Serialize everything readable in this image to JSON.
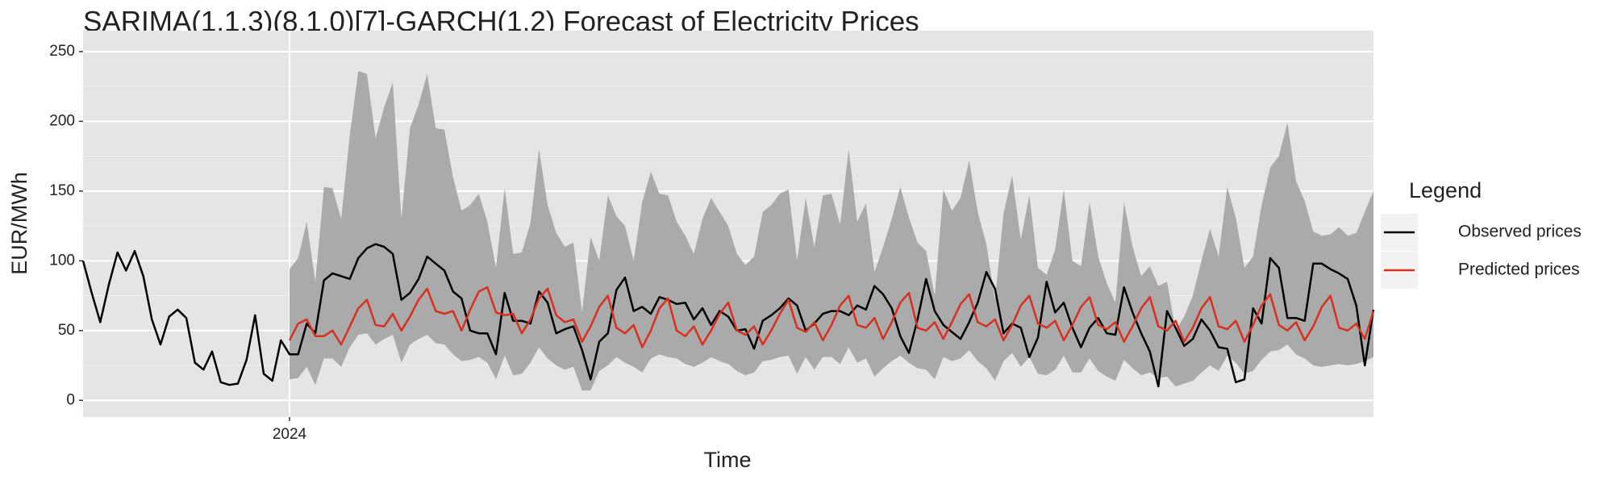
{
  "chart_data": {
    "type": "line",
    "title": "SARIMA(1,1,3)(8,1,0)[7]-GARCH(1,2) Forecast of Electricity Prices",
    "x_label": "Time",
    "y_label": "EUR/MWh",
    "legend_title": "Legend",
    "legend_position": "right",
    "grid": true,
    "categories": [
      null,
      null,
      null,
      null,
      null,
      null,
      null,
      null,
      null,
      null,
      null,
      null,
      null,
      null,
      null,
      null,
      null,
      null,
      null,
      null,
      null,
      null,
      null,
      null,
      "2024",
      null,
      null,
      null,
      null,
      null,
      null,
      null,
      null,
      null,
      null,
      null,
      null,
      null,
      null,
      null,
      null,
      null,
      null,
      null,
      null,
      null,
      null,
      null,
      null,
      null,
      null,
      null,
      null,
      null,
      null,
      null,
      null,
      null,
      null,
      null,
      null,
      null,
      null,
      null,
      null,
      null,
      null,
      null,
      null,
      null,
      null,
      null,
      null,
      null,
      null,
      null,
      null,
      null,
      null,
      null,
      null,
      null,
      null,
      null,
      null,
      null,
      null,
      null,
      null,
      null,
      null,
      null,
      null,
      null,
      null,
      null,
      null,
      null,
      null,
      null,
      null,
      null,
      null,
      null,
      null,
      null,
      null,
      null,
      null,
      null,
      null,
      null,
      null,
      null,
      null,
      null,
      null,
      null,
      null,
      null,
      null,
      null,
      null,
      null,
      null,
      null,
      null,
      null,
      null,
      null,
      null,
      null,
      null,
      null,
      null,
      null,
      null,
      null,
      null,
      null,
      null,
      null,
      null,
      null,
      null,
      null,
      null,
      null,
      null,
      null,
      null
    ],
    "ylim": [
      -12,
      265
    ],
    "yticks": [
      0,
      50,
      100,
      150,
      200,
      250
    ],
    "band": {
      "color": "#aaaaaa",
      "lower": [
        null,
        null,
        null,
        null,
        null,
        null,
        null,
        null,
        null,
        null,
        null,
        null,
        null,
        null,
        null,
        null,
        null,
        null,
        null,
        null,
        null,
        null,
        null,
        null,
        15,
        16,
        24,
        11,
        30,
        30,
        24,
        38,
        47,
        48,
        40,
        44,
        47,
        27,
        40,
        44,
        47,
        41,
        40,
        33,
        28,
        29,
        31,
        27,
        15,
        32,
        18,
        19,
        27,
        38,
        30,
        25,
        22,
        24,
        7,
        7,
        21,
        25,
        31,
        27,
        24,
        20,
        30,
        33,
        31,
        30,
        26,
        24,
        27,
        31,
        28,
        26,
        21,
        18,
        20,
        28,
        29,
        31,
        32,
        19,
        31,
        22,
        31,
        31,
        26,
        38,
        27,
        30,
        17,
        23,
        28,
        32,
        27,
        23,
        22,
        15,
        31,
        28,
        30,
        36,
        28,
        23,
        14,
        28,
        34,
        24,
        31,
        19,
        18,
        22,
        32,
        20,
        20,
        30,
        21,
        17,
        14,
        29,
        23,
        18,
        20,
        16,
        17,
        10,
        12,
        14,
        20,
        25,
        21,
        32,
        27,
        19,
        21,
        29,
        35,
        36,
        40,
        33,
        30,
        25,
        24,
        25,
        26,
        25,
        26,
        28,
        31
      ],
      "upper": [
        null,
        null,
        null,
        null,
        null,
        null,
        null,
        null,
        null,
        null,
        null,
        null,
        null,
        null,
        null,
        null,
        null,
        null,
        null,
        null,
        null,
        null,
        null,
        null,
        94,
        102,
        128,
        85,
        153,
        152,
        130,
        190,
        236,
        234,
        188,
        210,
        228,
        130,
        195,
        212,
        234,
        195,
        194,
        160,
        136,
        140,
        148,
        128,
        95,
        152,
        105,
        106,
        127,
        180,
        140,
        120,
        110,
        113,
        63,
        117,
        100,
        147,
        132,
        125,
        100,
        142,
        164,
        148,
        147,
        128,
        118,
        105,
        130,
        145,
        135,
        125,
        105,
        97,
        103,
        135,
        140,
        148,
        151,
        100,
        145,
        110,
        147,
        148,
        126,
        180,
        128,
        141,
        92,
        110,
        130,
        153,
        131,
        113,
        107,
        75,
        151,
        136,
        145,
        172,
        135,
        112,
        72,
        134,
        161,
        115,
        147,
        95,
        90,
        108,
        151,
        100,
        96,
        142,
        103,
        84,
        70,
        142,
        110,
        89,
        96,
        82,
        85,
        50,
        60,
        75,
        100,
        123,
        103,
        153,
        131,
        95,
        103,
        140,
        167,
        175,
        199,
        157,
        143,
        121,
        118,
        119,
        124,
        118,
        120,
        135,
        150
      ]
    },
    "series": [
      {
        "name": "Observed prices",
        "color": "#000000",
        "values": [
          100,
          77,
          56,
          83,
          106,
          93,
          107,
          89,
          58,
          40,
          60,
          65,
          59,
          27,
          22,
          35,
          13,
          11,
          12,
          29,
          61,
          19,
          14,
          43,
          33,
          33,
          55,
          48,
          86,
          91,
          89,
          87,
          102,
          109,
          112,
          110,
          105,
          72,
          77,
          87,
          103,
          98,
          93,
          78,
          73,
          50,
          48,
          48,
          33,
          77,
          57,
          57,
          55,
          78,
          70,
          48,
          51,
          53,
          36,
          15,
          42,
          48,
          79,
          88,
          64,
          67,
          62,
          74,
          72,
          69,
          70,
          58,
          66,
          54,
          64,
          60,
          50,
          51,
          37,
          57,
          61,
          66,
          73,
          68,
          50,
          55,
          62,
          64,
          64,
          61,
          68,
          65,
          82,
          76,
          66,
          46,
          34,
          58,
          87,
          64,
          54,
          49,
          44,
          56,
          70,
          92,
          80,
          48,
          55,
          52,
          31,
          45,
          85,
          63,
          70,
          52,
          38,
          52,
          59,
          48,
          47,
          81,
          63,
          48,
          35,
          10,
          64,
          52,
          39,
          44,
          58,
          50,
          38,
          37,
          13,
          15,
          66,
          55,
          102,
          95,
          59,
          59,
          57,
          98,
          98,
          94,
          91,
          87,
          68,
          25,
          65
        ]
      },
      {
        "name": "Predicted prices",
        "color": "#d7301f",
        "values": [
          null,
          null,
          null,
          null,
          null,
          null,
          null,
          null,
          null,
          null,
          null,
          null,
          null,
          null,
          null,
          null,
          null,
          null,
          null,
          null,
          null,
          null,
          null,
          null,
          43,
          55,
          58,
          46,
          46,
          50,
          40,
          53,
          66,
          72,
          54,
          53,
          62,
          50,
          60,
          72,
          80,
          64,
          62,
          64,
          50,
          65,
          78,
          81,
          63,
          61,
          62,
          48,
          58,
          73,
          80,
          61,
          56,
          58,
          42,
          53,
          67,
          75,
          52,
          48,
          54,
          38,
          50,
          66,
          73,
          50,
          46,
          53,
          40,
          50,
          62,
          70,
          50,
          47,
          53,
          40,
          50,
          62,
          72,
          52,
          49,
          56,
          43,
          54,
          68,
          75,
          54,
          52,
          59,
          44,
          56,
          70,
          77,
          52,
          50,
          56,
          44,
          56,
          69,
          76,
          56,
          53,
          58,
          43,
          54,
          68,
          75,
          55,
          52,
          57,
          43,
          54,
          67,
          74,
          54,
          51,
          56,
          42,
          53,
          66,
          74,
          53,
          50,
          57,
          42,
          52,
          66,
          74,
          53,
          51,
          57,
          42,
          54,
          68,
          76,
          54,
          50,
          56,
          43,
          53,
          67,
          75,
          52,
          50,
          55,
          44,
          64
        ]
      }
    ]
  }
}
